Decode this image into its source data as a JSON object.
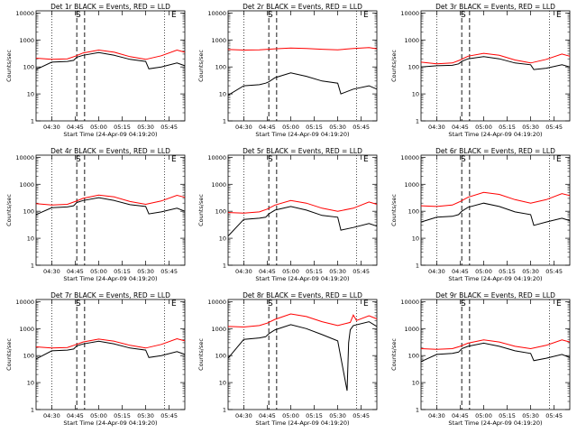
{
  "chart_data": [
    {
      "type": "line",
      "title": "Det 1r BLACK = Events, RED = LLD",
      "xlabel": "Start Time (24-Apr-09 04:19:20)",
      "ylabel": "Counts/sec",
      "y_scale": "log",
      "ylim": [
        1,
        12000
      ],
      "xlim": [
        "04:20",
        "05:55"
      ],
      "x_ticks": [
        "04:30",
        "04:45",
        "05:00",
        "05:15",
        "05:30",
        "05:45"
      ],
      "y_ticks": [
        "1",
        "10",
        "100",
        "1000",
        "10000"
      ],
      "markers": {
        "dotted": [
          "04:30",
          "05:42"
        ],
        "dashed": [
          "04:46",
          "04:51"
        ],
        "labels": [
          {
            "text": "S",
            "at": "04:47"
          },
          {
            "text": "E",
            "at": "05:48"
          }
        ]
      },
      "series": [
        {
          "color": "#ff0000",
          "x": [
            "04:20",
            "04:30",
            "04:40",
            "04:45",
            "04:50",
            "05:00",
            "05:10",
            "05:20",
            "05:30",
            "05:40",
            "05:50",
            "05:55"
          ],
          "values": [
            210,
            190,
            200,
            250,
            330,
            420,
            350,
            240,
            190,
            260,
            420,
            350
          ]
        },
        {
          "color": "#000000",
          "x": [
            "04:20",
            "04:30",
            "04:40",
            "04:44",
            "04:46",
            "04:50",
            "05:00",
            "05:10",
            "05:20",
            "05:30",
            "05:32",
            "05:40",
            "05:50",
            "05:55"
          ],
          "values": [
            80,
            150,
            160,
            175,
            230,
            270,
            340,
            270,
            190,
            160,
            85,
            100,
            140,
            110
          ]
        }
      ]
    },
    {
      "type": "line",
      "title": "Det 2r BLACK = Events, RED = LLD",
      "xlabel": "Start Time (24-Apr-09 04:19:20)",
      "ylabel": "Counts/sec",
      "y_scale": "log",
      "ylim": [
        1,
        12000
      ],
      "xlim": [
        "04:20",
        "05:55"
      ],
      "x_ticks": [
        "04:30",
        "04:45",
        "05:00",
        "05:15",
        "05:30",
        "05:45"
      ],
      "y_ticks": [
        "1",
        "10",
        "100",
        "1000",
        "10000"
      ],
      "markers": {
        "dotted": [
          "04:30",
          "05:42"
        ],
        "dashed": [
          "04:46",
          "04:51"
        ],
        "labels": [
          {
            "text": "S",
            "at": "04:47"
          },
          {
            "text": "E",
            "at": "05:48"
          }
        ]
      },
      "series": [
        {
          "color": "#ff0000",
          "x": [
            "04:20",
            "04:30",
            "04:40",
            "04:50",
            "05:00",
            "05:10",
            "05:20",
            "05:30",
            "05:40",
            "05:50",
            "05:55"
          ],
          "values": [
            440,
            420,
            430,
            470,
            500,
            480,
            450,
            430,
            480,
            520,
            470
          ]
        },
        {
          "color": "#000000",
          "x": [
            "04:20",
            "04:30",
            "04:40",
            "04:44",
            "04:46",
            "04:50",
            "05:00",
            "05:10",
            "05:20",
            "05:30",
            "05:32",
            "05:40",
            "05:50",
            "05:55"
          ],
          "values": [
            9,
            20,
            22,
            25,
            28,
            40,
            60,
            45,
            30,
            25,
            10,
            15,
            20,
            15
          ]
        }
      ]
    },
    {
      "type": "line",
      "title": "Det 3r BLACK = Events, RED = LLD",
      "xlabel": "Start Time (24-Apr-09 04:19:20)",
      "ylabel": "Counts/sec",
      "y_scale": "log",
      "ylim": [
        1,
        12000
      ],
      "xlim": [
        "04:20",
        "05:55"
      ],
      "x_ticks": [
        "04:30",
        "04:45",
        "05:00",
        "05:15",
        "05:30",
        "05:45"
      ],
      "y_ticks": [
        "1",
        "10",
        "100",
        "1000",
        "10000"
      ],
      "markers": {
        "dotted": [
          "04:30",
          "05:42"
        ],
        "dashed": [
          "04:46",
          "04:51"
        ],
        "labels": [
          {
            "text": "S",
            "at": "04:47"
          },
          {
            "text": "E",
            "at": "05:48"
          }
        ]
      },
      "series": [
        {
          "color": "#ff0000",
          "x": [
            "04:20",
            "04:30",
            "04:40",
            "04:45",
            "04:50",
            "05:00",
            "05:10",
            "05:20",
            "05:30",
            "05:40",
            "05:50",
            "05:55"
          ],
          "values": [
            150,
            130,
            140,
            180,
            250,
            320,
            270,
            180,
            140,
            190,
            300,
            250
          ]
        },
        {
          "color": "#000000",
          "x": [
            "04:20",
            "04:30",
            "04:40",
            "04:44",
            "04:46",
            "04:50",
            "05:00",
            "05:10",
            "05:20",
            "05:30",
            "05:32",
            "05:40",
            "05:50",
            "05:55"
          ],
          "values": [
            100,
            110,
            115,
            130,
            160,
            200,
            240,
            200,
            140,
            120,
            80,
            90,
            120,
            100
          ]
        }
      ]
    },
    {
      "type": "line",
      "title": "Det 4r BLACK = Events, RED = LLD",
      "xlabel": "Start Time (24-Apr-09 04:19:20)",
      "ylabel": "Counts/sec",
      "y_scale": "log",
      "ylim": [
        1,
        12000
      ],
      "xlim": [
        "04:20",
        "05:55"
      ],
      "x_ticks": [
        "04:30",
        "04:45",
        "05:00",
        "05:15",
        "05:30",
        "05:45"
      ],
      "y_ticks": [
        "1",
        "10",
        "100",
        "1000",
        "10000"
      ],
      "markers": {
        "dotted": [
          "04:30",
          "05:42"
        ],
        "dashed": [
          "04:46",
          "04:51"
        ],
        "labels": [
          {
            "text": "S",
            "at": "04:47"
          },
          {
            "text": "E",
            "at": "05:48"
          }
        ]
      },
      "series": [
        {
          "color": "#ff0000",
          "x": [
            "04:20",
            "04:30",
            "04:40",
            "04:45",
            "04:50",
            "05:00",
            "05:10",
            "05:20",
            "05:30",
            "05:40",
            "05:50",
            "05:55"
          ],
          "values": [
            190,
            170,
            180,
            230,
            300,
            400,
            340,
            230,
            180,
            240,
            390,
            330
          ]
        },
        {
          "color": "#000000",
          "x": [
            "04:20",
            "04:30",
            "04:40",
            "04:44",
            "04:46",
            "04:50",
            "05:00",
            "05:10",
            "05:20",
            "05:30",
            "05:32",
            "05:40",
            "05:50",
            "05:55"
          ],
          "values": [
            75,
            135,
            145,
            160,
            210,
            250,
            320,
            250,
            175,
            150,
            80,
            95,
            130,
            100
          ]
        }
      ]
    },
    {
      "type": "line",
      "title": "Det 5r BLACK = Events, RED = LLD",
      "xlabel": "Start Time (24-Apr-09 04:19:20)",
      "ylabel": "Counts/sec",
      "y_scale": "log",
      "ylim": [
        1,
        12000
      ],
      "xlim": [
        "04:20",
        "05:55"
      ],
      "x_ticks": [
        "04:30",
        "04:45",
        "05:00",
        "05:15",
        "05:30",
        "05:45"
      ],
      "y_ticks": [
        "1",
        "10",
        "100",
        "1000",
        "10000"
      ],
      "markers": {
        "dotted": [
          "04:30",
          "05:42"
        ],
        "dashed": [
          "04:46",
          "04:51"
        ],
        "labels": [
          {
            "text": "S",
            "at": "04:47"
          },
          {
            "text": "E",
            "at": "05:48"
          }
        ]
      },
      "series": [
        {
          "color": "#ff0000",
          "x": [
            "04:20",
            "04:30",
            "04:40",
            "04:45",
            "04:50",
            "05:00",
            "05:10",
            "05:20",
            "05:30",
            "05:40",
            "05:50",
            "05:55"
          ],
          "values": [
            90,
            85,
            95,
            120,
            170,
            250,
            200,
            130,
            100,
            130,
            220,
            180
          ]
        },
        {
          "color": "#000000",
          "x": [
            "04:20",
            "04:30",
            "04:40",
            "04:44",
            "04:46",
            "04:50",
            "05:00",
            "05:10",
            "05:20",
            "05:30",
            "05:32",
            "05:40",
            "05:50",
            "05:55"
          ],
          "values": [
            12,
            50,
            55,
            60,
            80,
            110,
            150,
            110,
            70,
            60,
            20,
            25,
            35,
            28
          ]
        }
      ]
    },
    {
      "type": "line",
      "title": "Det 6r BLACK = Events, RED = LLD",
      "xlabel": "Start Time (24-Apr-09 04:19:20)",
      "ylabel": "Counts/sec",
      "y_scale": "log",
      "ylim": [
        1,
        12000
      ],
      "xlim": [
        "04:20",
        "05:55"
      ],
      "x_ticks": [
        "04:30",
        "04:45",
        "05:00",
        "05:15",
        "05:30",
        "05:45"
      ],
      "y_ticks": [
        "1",
        "10",
        "100",
        "1000",
        "10000"
      ],
      "markers": {
        "dotted": [
          "04:30",
          "05:42"
        ],
        "dashed": [
          "04:46",
          "04:51"
        ],
        "labels": [
          {
            "text": "S",
            "at": "04:47"
          },
          {
            "text": "E",
            "at": "05:48"
          }
        ]
      },
      "series": [
        {
          "color": "#ff0000",
          "x": [
            "04:20",
            "04:30",
            "04:40",
            "04:45",
            "04:50",
            "05:00",
            "05:10",
            "05:20",
            "05:30",
            "05:40",
            "05:50",
            "05:55"
          ],
          "values": [
            160,
            150,
            170,
            230,
            330,
            500,
            420,
            270,
            200,
            270,
            450,
            380
          ]
        },
        {
          "color": "#000000",
          "x": [
            "04:20",
            "04:30",
            "04:40",
            "04:44",
            "04:46",
            "04:50",
            "05:00",
            "05:10",
            "05:20",
            "05:30",
            "05:32",
            "05:40",
            "05:50",
            "05:55"
          ],
          "values": [
            40,
            60,
            65,
            75,
            100,
            140,
            200,
            150,
            95,
            75,
            30,
            40,
            55,
            45
          ]
        }
      ]
    },
    {
      "type": "line",
      "title": "Det 7r BLACK = Events, RED = LLD",
      "xlabel": "Start Time (24-Apr-09 04:19:20)",
      "ylabel": "Counts/sec",
      "y_scale": "log",
      "ylim": [
        1,
        12000
      ],
      "xlim": [
        "04:20",
        "05:55"
      ],
      "x_ticks": [
        "04:30",
        "04:45",
        "05:00",
        "05:15",
        "05:30",
        "05:45"
      ],
      "y_ticks": [
        "1",
        "10",
        "100",
        "1000",
        "10000"
      ],
      "markers": {
        "dotted": [
          "04:30",
          "05:42"
        ],
        "dashed": [
          "04:46",
          "04:51"
        ],
        "labels": [
          {
            "text": "S",
            "at": "04:47"
          },
          {
            "text": "E",
            "at": "05:48"
          }
        ]
      },
      "series": [
        {
          "color": "#ff0000",
          "x": [
            "04:20",
            "04:30",
            "04:40",
            "04:45",
            "04:50",
            "05:00",
            "05:10",
            "05:20",
            "05:30",
            "05:40",
            "05:50",
            "05:55"
          ],
          "values": [
            210,
            190,
            200,
            250,
            320,
            410,
            340,
            240,
            190,
            260,
            420,
            350
          ]
        },
        {
          "color": "#000000",
          "x": [
            "04:20",
            "04:30",
            "04:40",
            "04:44",
            "04:46",
            "04:50",
            "05:00",
            "05:10",
            "05:20",
            "05:30",
            "05:32",
            "05:40",
            "05:50",
            "05:55"
          ],
          "values": [
            75,
            150,
            160,
            175,
            230,
            270,
            340,
            270,
            190,
            160,
            85,
            100,
            140,
            110
          ]
        }
      ]
    },
    {
      "type": "line",
      "title": "Det 8r BLACK = Events, RED = LLD",
      "xlabel": "Start Time (24-Apr-09 04:19:20)",
      "ylabel": "Counts/sec",
      "y_scale": "log",
      "ylim": [
        1,
        12000
      ],
      "xlim": [
        "04:20",
        "05:55"
      ],
      "x_ticks": [
        "04:30",
        "04:45",
        "05:00",
        "05:15",
        "05:30",
        "05:45"
      ],
      "y_ticks": [
        "1",
        "10",
        "100",
        "1000",
        "10000"
      ],
      "markers": {
        "dotted": [
          "04:30",
          "05:42"
        ],
        "dashed": [
          "04:46",
          "04:51"
        ],
        "labels": [
          {
            "text": "S",
            "at": "04:47"
          },
          {
            "text": "E",
            "at": "05:48"
          }
        ]
      },
      "series": [
        {
          "color": "#ff0000",
          "x": [
            "04:20",
            "04:30",
            "04:40",
            "04:45",
            "04:50",
            "05:00",
            "05:10",
            "05:20",
            "05:30",
            "05:38",
            "05:40",
            "05:42",
            "05:50",
            "05:55"
          ],
          "values": [
            1200,
            1150,
            1300,
            1600,
            2200,
            3500,
            2800,
            1800,
            1300,
            1700,
            3200,
            2000,
            3000,
            2300
          ]
        },
        {
          "color": "#000000",
          "x": [
            "04:20",
            "04:30",
            "04:40",
            "04:44",
            "04:46",
            "04:50",
            "05:00",
            "05:10",
            "05:20",
            "05:30",
            "05:36",
            "05:37",
            "05:38",
            "05:40",
            "05:50",
            "05:55"
          ],
          "values": [
            80,
            400,
            450,
            500,
            650,
            900,
            1400,
            1000,
            600,
            350,
            5,
            300,
            900,
            1300,
            1800,
            1200
          ]
        }
      ]
    },
    {
      "type": "line",
      "title": "Det 9r BLACK = Events, RED = LLD",
      "xlabel": "Start Time (24-Apr-09 04:19:20)",
      "ylabel": "Counts/sec",
      "y_scale": "log",
      "ylim": [
        1,
        12000
      ],
      "xlim": [
        "04:20",
        "05:55"
      ],
      "x_ticks": [
        "04:30",
        "04:45",
        "05:00",
        "05:15",
        "05:30",
        "05:45"
      ],
      "y_ticks": [
        "1",
        "10",
        "100",
        "1000",
        "10000"
      ],
      "markers": {
        "dotted": [
          "04:30",
          "05:42"
        ],
        "dashed": [
          "04:46",
          "04:51"
        ],
        "labels": [
          {
            "text": "S",
            "at": "04:47"
          },
          {
            "text": "E",
            "at": "05:48"
          }
        ]
      },
      "series": [
        {
          "color": "#ff0000",
          "x": [
            "04:20",
            "04:30",
            "04:40",
            "04:45",
            "04:50",
            "05:00",
            "05:10",
            "05:20",
            "05:30",
            "05:40",
            "05:50",
            "05:55"
          ],
          "values": [
            180,
            170,
            180,
            220,
            290,
            380,
            320,
            220,
            180,
            240,
            380,
            320
          ]
        },
        {
          "color": "#000000",
          "x": [
            "04:20",
            "04:30",
            "04:40",
            "04:44",
            "04:46",
            "04:50",
            "05:00",
            "05:10",
            "05:20",
            "05:30",
            "05:32",
            "05:40",
            "05:50",
            "05:55"
          ],
          "values": [
            60,
            110,
            120,
            135,
            180,
            220,
            290,
            220,
            150,
            120,
            65,
            80,
            110,
            85
          ]
        }
      ]
    }
  ]
}
